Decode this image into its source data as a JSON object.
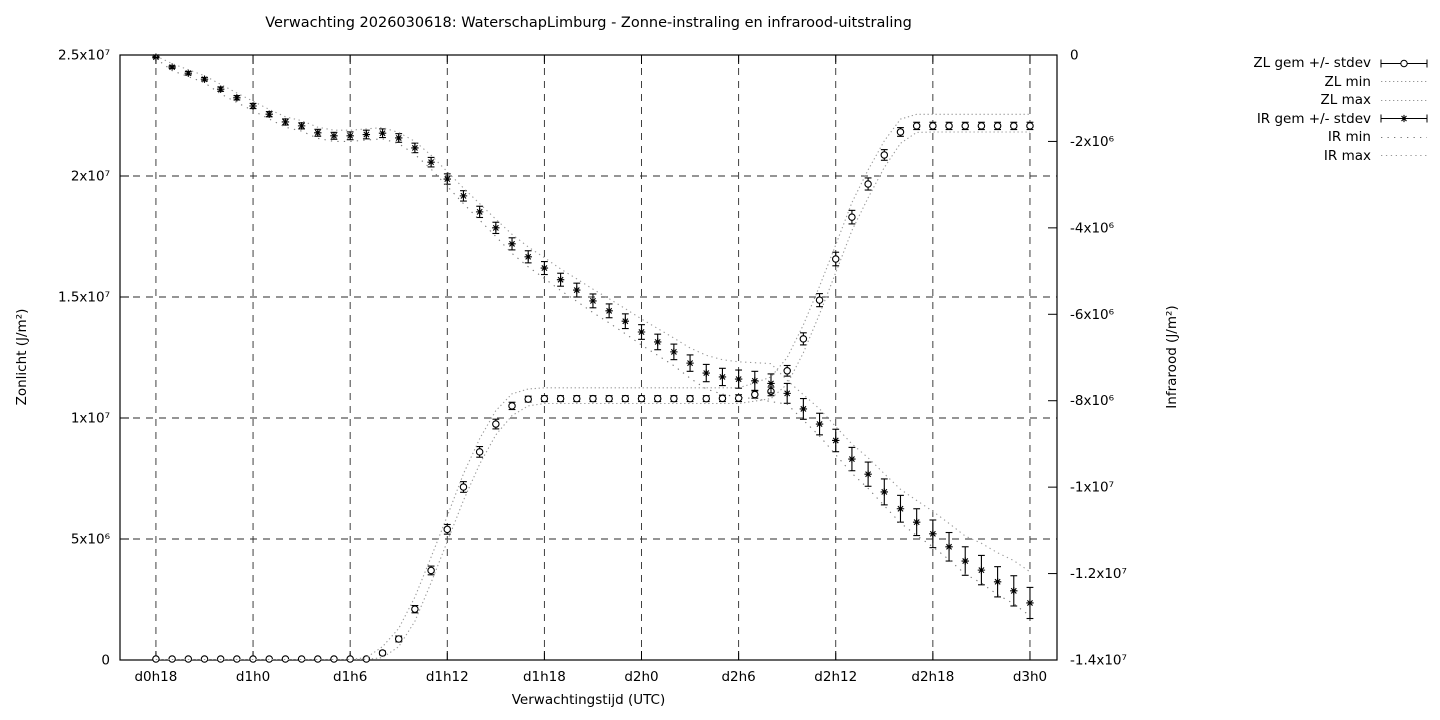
{
  "colors": {
    "foreground": "#000000",
    "background": "#ffffff",
    "envelope_gray": "#999999",
    "envelope_dark_gray": "#777777"
  },
  "chart_data": {
    "type": "line",
    "style": "gnuplot errorbars with dotted min/max envelopes, grid on, legend top-right outside plot",
    "title": "Verwachting 2026030618: WaterschapLimburg - Zonne-instraling en infrarood-uitstraling",
    "xlabel": "Verwachtingstijd (UTC)",
    "x": {
      "range_hours": [
        15.78,
        73.67
      ],
      "ticks": [
        {
          "hour": 18,
          "label": "d0h18"
        },
        {
          "hour": 24,
          "label": "d1h0"
        },
        {
          "hour": 30,
          "label": "d1h6"
        },
        {
          "hour": 36,
          "label": "d1h12"
        },
        {
          "hour": 42,
          "label": "d1h18"
        },
        {
          "hour": 48,
          "label": "d2h0"
        },
        {
          "hour": 54,
          "label": "d2h6"
        },
        {
          "hour": 60,
          "label": "d2h12"
        },
        {
          "hour": 66,
          "label": "d2h18"
        },
        {
          "hour": 72,
          "label": "d3h0"
        }
      ]
    },
    "y_left": {
      "label": "Zonlicht (J/m²)",
      "range": [
        0,
        25000000.0
      ],
      "ticks": [
        {
          "value": 0,
          "label": "0"
        },
        {
          "value": 5000000.0,
          "label": "5x10⁶"
        },
        {
          "value": 10000000.0,
          "label": "1x10⁷"
        },
        {
          "value": 15000000.0,
          "label": "1.5x10⁷"
        },
        {
          "value": 20000000.0,
          "label": "2x10⁷"
        },
        {
          "value": 25000000.0,
          "label": "2.5x10⁷"
        }
      ]
    },
    "y_right": {
      "label": "Infrarood (J/m²)",
      "range": [
        -14000000.0,
        0
      ],
      "ticks": [
        {
          "value": 0,
          "label": "0"
        },
        {
          "value": -2000000.0,
          "label": "-2x10⁶"
        },
        {
          "value": -4000000.0,
          "label": "-4x10⁶"
        },
        {
          "value": -6000000.0,
          "label": "-6x10⁶"
        },
        {
          "value": -8000000.0,
          "label": "-8x10⁶"
        },
        {
          "value": -10000000.0,
          "label": "-1x10⁷"
        },
        {
          "value": -12000000.0,
          "label": "-1.2x10⁷"
        },
        {
          "value": -14000000.0,
          "label": "-1.4x10⁷"
        }
      ]
    },
    "hours": [
      18,
      19,
      20,
      21,
      22,
      23,
      24,
      25,
      26,
      27,
      28,
      29,
      30,
      31,
      32,
      33,
      34,
      35,
      36,
      37,
      38,
      39,
      40,
      41,
      42,
      43,
      44,
      45,
      46,
      47,
      48,
      49,
      50,
      51,
      52,
      53,
      54,
      55,
      56,
      57,
      58,
      59,
      60,
      61,
      62,
      63,
      64,
      65,
      66,
      67,
      68,
      69,
      70,
      71,
      72
    ],
    "series": [
      {
        "name": "ZL gem +/- stdev",
        "axis": "left",
        "kind": "errorbars",
        "marker": "circle",
        "color": "#000000",
        "mean": [
          0,
          0,
          0,
          0,
          0,
          0,
          0,
          0,
          0,
          0,
          0,
          0,
          0,
          0,
          290000.0,
          870000.0,
          2100000.0,
          3700000.0,
          5400000.0,
          7150000.0,
          8600000.0,
          9750000.0,
          10500000.0,
          10780000.0,
          10800000.0,
          10800000.0,
          10800000.0,
          10800000.0,
          10800000.0,
          10800000.0,
          10800000.0,
          10800000.0,
          10800000.0,
          10800000.0,
          10800000.0,
          10810000.0,
          10820000.0,
          10970000.0,
          11100000.0,
          11950000.0,
          13270000.0,
          14870000.0,
          16570000.0,
          18300000.0,
          19670000.0,
          20870000.0,
          21820000.0,
          22070000.0,
          22070000.0,
          22070000.0,
          22070000.0,
          22070000.0,
          22070000.0,
          22070000.0,
          22070000.0
        ],
        "stdev": [
          0,
          0,
          0,
          0,
          0,
          0,
          0,
          0,
          0,
          0,
          0,
          0,
          0,
          0,
          80000.0,
          120000.0,
          150000.0,
          180000.0,
          200000.0,
          220000.0,
          220000.0,
          200000.0,
          150000.0,
          120000.0,
          120000.0,
          120000.0,
          120000.0,
          120000.0,
          120000.0,
          120000.0,
          120000.0,
          120000.0,
          120000.0,
          120000.0,
          120000.0,
          130000.0,
          140000.0,
          150000.0,
          180000.0,
          220000.0,
          250000.0,
          270000.0,
          280000.0,
          280000.0,
          250000.0,
          220000.0,
          180000.0,
          150000.0,
          150000.0,
          150000.0,
          150000.0,
          150000.0,
          150000.0,
          150000.0,
          150000.0
        ]
      },
      {
        "name": "ZL min",
        "axis": "left",
        "kind": "dotted",
        "color": "#999999",
        "dash": "1.3,2.7",
        "values": [
          0,
          0,
          0,
          0,
          0,
          0,
          0,
          0,
          0,
          0,
          0,
          0,
          0,
          0,
          100000.0,
          550000.0,
          1600000.0,
          3200000.0,
          4900000.0,
          6600000.0,
          8100000.0,
          9300000.0,
          10100000.0,
          10500000.0,
          10600000.0,
          10600000.0,
          10600000.0,
          10600000.0,
          10600000.0,
          10600000.0,
          10600000.0,
          10600000.0,
          10600000.0,
          10600000.0,
          10600000.0,
          10600000.0,
          10600000.0,
          10700000.0,
          10800000.0,
          11400000.0,
          12700000.0,
          14300000.0,
          16000000.0,
          17750000.0,
          19100000.0,
          20350000.0,
          21350000.0,
          21800000.0,
          21820000.0,
          21820000.0,
          21820000.0,
          21820000.0,
          21820000.0,
          21820000.0,
          21820000.0
        ]
      },
      {
        "name": "ZL max",
        "axis": "left",
        "kind": "dotted",
        "color": "#999999",
        "dash": "1.3,2.7",
        "values": [
          0,
          0,
          0,
          0,
          0,
          0,
          0,
          0,
          0,
          0,
          0,
          0,
          0,
          100000.0,
          550000.0,
          1300000.0,
          2600000.0,
          4250000.0,
          5950000.0,
          7700000.0,
          9150000.0,
          10300000.0,
          11000000.0,
          11200000.0,
          11250000.0,
          11250000.0,
          11250000.0,
          11250000.0,
          11250000.0,
          11250000.0,
          11250000.0,
          11250000.0,
          11250000.0,
          11250000.0,
          11250000.0,
          11250000.0,
          11250000.0,
          11450000.0,
          11700000.0,
          12500000.0,
          13850000.0,
          15450000.0,
          17150000.0,
          18900000.0,
          20250000.0,
          21450000.0,
          22350000.0,
          22550000.0,
          22550000.0,
          22550000.0,
          22550000.0,
          22550000.0,
          22550000.0,
          22550000.0,
          22550000.0
        ]
      },
      {
        "name": "IR gem +/- stdev",
        "axis": "right",
        "kind": "errorbars",
        "marker": "asterisk",
        "color": "#000000",
        "mean": [
          -50000.0,
          -280000.0,
          -420000.0,
          -560000.0,
          -790000.0,
          -990000.0,
          -1180000.0,
          -1370000.0,
          -1550000.0,
          -1640000.0,
          -1800000.0,
          -1870000.0,
          -1870000.0,
          -1840000.0,
          -1810000.0,
          -1920000.0,
          -2150000.0,
          -2480000.0,
          -2870000.0,
          -3260000.0,
          -3630000.0,
          -4000000.0,
          -4370000.0,
          -4670000.0,
          -4930000.0,
          -5200000.0,
          -5440000.0,
          -5690000.0,
          -5920000.0,
          -6160000.0,
          -6410000.0,
          -6640000.0,
          -6870000.0,
          -7130000.0,
          -7360000.0,
          -7450000.0,
          -7500000.0,
          -7540000.0,
          -7600000.0,
          -7830000.0,
          -8190000.0,
          -8540000.0,
          -8920000.0,
          -9350000.0,
          -9700000.0,
          -10110000.0,
          -10500000.0,
          -10810000.0,
          -11080000.0,
          -11380000.0,
          -11710000.0,
          -11920000.0,
          -12190000.0,
          -12400000.0,
          -12680000.0
        ],
        "stdev": [
          20000.0,
          30000.0,
          40000.0,
          40000.0,
          50000.0,
          50000.0,
          60000.0,
          60000.0,
          70000.0,
          70000.0,
          80000.0,
          80000.0,
          90000.0,
          100000.0,
          100000.0,
          100000.0,
          110000.0,
          110000.0,
          120000.0,
          120000.0,
          130000.0,
          130000.0,
          140000.0,
          140000.0,
          150000.0,
          150000.0,
          160000.0,
          160000.0,
          160000.0,
          170000.0,
          170000.0,
          180000.0,
          180000.0,
          190000.0,
          200000.0,
          200000.0,
          210000.0,
          220000.0,
          220000.0,
          230000.0,
          240000.0,
          250000.0,
          260000.0,
          270000.0,
          280000.0,
          300000.0,
          310000.0,
          310000.0,
          320000.0,
          330000.0,
          330000.0,
          340000.0,
          350000.0,
          350000.0,
          360000.0
        ]
      },
      {
        "name": "IR min",
        "axis": "right",
        "kind": "dotted",
        "color": "#777777",
        "dash": "1.3,5.2",
        "values": [
          -80000.0,
          -360000.0,
          -500000.0,
          -640000.0,
          -900000.0,
          -1100000.0,
          -1290000.0,
          -1480000.0,
          -1670000.0,
          -1760000.0,
          -1930000.0,
          -2000000.0,
          -2000000.0,
          -1970000.0,
          -1940000.0,
          -2050000.0,
          -2300000.0,
          -2640000.0,
          -3040000.0,
          -3440000.0,
          -3820000.0,
          -4200000.0,
          -4590000.0,
          -4900000.0,
          -5170000.0,
          -5450000.0,
          -5700000.0,
          -5960000.0,
          -6200000.0,
          -6450000.0,
          -6710000.0,
          -6950000.0,
          -7190000.0,
          -7480000.0,
          -7730000.0,
          -7850000.0,
          -7920000.0,
          -7950000.0,
          -8020000.0,
          -8080000.0,
          -8450000.0,
          -8820000.0,
          -9250000.0,
          -9680000.0,
          -10030000.0,
          -10430000.0,
          -10830000.0,
          -11120000.0,
          -11380000.0,
          -11680000.0,
          -12010000.0,
          -12220000.0,
          -12490000.0,
          -12700000.0,
          -12980000.0
        ]
      },
      {
        "name": "IR max",
        "axis": "right",
        "kind": "dotted",
        "color": "#999999",
        "dash": "1.3,3.6",
        "values": [
          -20000.0,
          -200000.0,
          -340000.0,
          -480000.0,
          -680000.0,
          -880000.0,
          -1070000.0,
          -1260000.0,
          -1430000.0,
          -1520000.0,
          -1670000.0,
          -1740000.0,
          -1740000.0,
          -1710000.0,
          -1680000.0,
          -1790000.0,
          -2000000.0,
          -2320000.0,
          -2700000.0,
          -3080000.0,
          -3440000.0,
          -3800000.0,
          -4150000.0,
          -4440000.0,
          -4690000.0,
          -4950000.0,
          -5180000.0,
          -5420000.0,
          -5640000.0,
          -5870000.0,
          -6110000.0,
          -6330000.0,
          -6550000.0,
          -6780000.0,
          -6950000.0,
          -7050000.0,
          -7100000.0,
          -7120000.0,
          -7140000.0,
          -7530000.0,
          -7860000.0,
          -8190000.0,
          -8600000.0,
          -9000000.0,
          -9320000.0,
          -9690000.0,
          -10050000.0,
          -10310000.0,
          -10560000.0,
          -10840000.0,
          -11130000.0,
          -11300000.0,
          -11520000.0,
          -11700000.0,
          -11960000.0
        ]
      }
    ],
    "legend": {
      "position": "outside-top-right",
      "items": [
        {
          "label": "ZL gem +/- stdev",
          "glyph": "errorbar-circle"
        },
        {
          "label": "ZL min",
          "glyph": "dotted-line"
        },
        {
          "label": "ZL max",
          "glyph": "dotted-line"
        },
        {
          "label": "IR gem +/- stdev",
          "glyph": "errorbar-asterisk"
        },
        {
          "label": "IR min",
          "glyph": "sparse-dotted-line"
        },
        {
          "label": "IR max",
          "glyph": "dotted-line"
        }
      ]
    }
  }
}
